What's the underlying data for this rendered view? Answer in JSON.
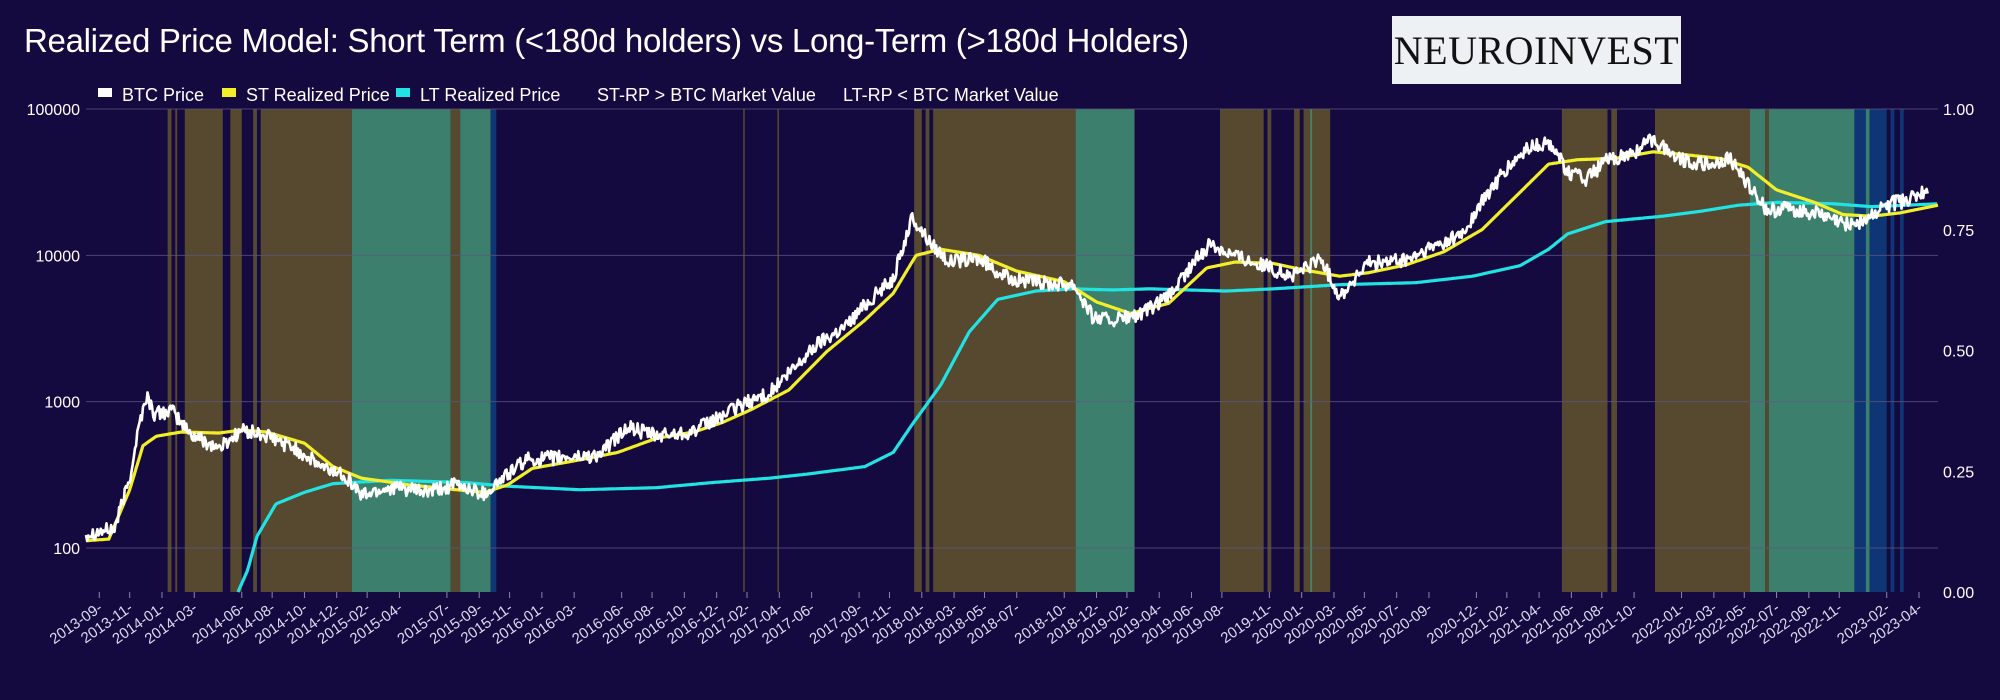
{
  "title": "Realized Price Model: Short Term (<180d holders) vs Long-Term (>180d Holders)",
  "brand": "NEUROINVEST",
  "legend": [
    {
      "label": "BTC Price",
      "color": "#ffffff",
      "marker": true
    },
    {
      "label": "ST Realized Price",
      "color": "#f2ee2a",
      "marker": true
    },
    {
      "label": "LT Realized Price",
      "color": "#22e3e3",
      "marker": true
    },
    {
      "label": "ST-RP > BTC Market Value",
      "color": "#f2ee2a",
      "marker": false
    },
    {
      "label": "LT-RP < BTC Market Value",
      "color": "#22e3e3",
      "marker": false
    }
  ],
  "colors": {
    "background": "#140a40",
    "btc": "#ffffff",
    "st": "#f2ee2a",
    "lt": "#22e3e3",
    "st_band": "#5c4f2f",
    "lt_band": "#3f8a70",
    "dark_band": "#0d3a7a",
    "grid": "#5e5880"
  },
  "chart_data": {
    "type": "line",
    "title": "Realized Price Model: Short Term (<180d holders) vs Long-Term (>180d Holders)",
    "y_scale": "log",
    "ylim": [
      50,
      100000
    ],
    "y_ticks": [
      "100",
      "1000",
      "10000",
      "100000"
    ],
    "y2lim": [
      0,
      1
    ],
    "y2_ticks": [
      "0.00",
      "0.25",
      "0.50",
      "0.75",
      "1.00"
    ],
    "xlim": [
      2013.6,
      2023.35
    ],
    "x_ticks": [
      {
        "label": "2013-09-",
        "t": 2013.67
      },
      {
        "label": "2013-11-",
        "t": 2013.83
      },
      {
        "label": "2014-01-",
        "t": 2014.0
      },
      {
        "label": "2014-03-",
        "t": 2014.17
      },
      {
        "label": "2014-06-",
        "t": 2014.42
      },
      {
        "label": "2014-08-",
        "t": 2014.58
      },
      {
        "label": "2014-10-",
        "t": 2014.75
      },
      {
        "label": "2014-12-",
        "t": 2014.92
      },
      {
        "label": "2015-02-",
        "t": 2015.08
      },
      {
        "label": "2015-04-",
        "t": 2015.25
      },
      {
        "label": "2015-07-",
        "t": 2015.5
      },
      {
        "label": "2015-09-",
        "t": 2015.67
      },
      {
        "label": "2015-11-",
        "t": 2015.83
      },
      {
        "label": "2016-01-",
        "t": 2016.0
      },
      {
        "label": "2016-03-",
        "t": 2016.17
      },
      {
        "label": "2016-06-",
        "t": 2016.42
      },
      {
        "label": "2016-08-",
        "t": 2016.58
      },
      {
        "label": "2016-10-",
        "t": 2016.75
      },
      {
        "label": "2016-12-",
        "t": 2016.92
      },
      {
        "label": "2017-02-",
        "t": 2017.08
      },
      {
        "label": "2017-04-",
        "t": 2017.25
      },
      {
        "label": "2017-06-",
        "t": 2017.42
      },
      {
        "label": "2017-09-",
        "t": 2017.67
      },
      {
        "label": "2017-11-",
        "t": 2017.83
      },
      {
        "label": "2018-01-",
        "t": 2018.0
      },
      {
        "label": "2018-03-",
        "t": 2018.17
      },
      {
        "label": "2018-05-",
        "t": 2018.33
      },
      {
        "label": "2018-07-",
        "t": 2018.5
      },
      {
        "label": "2018-10-",
        "t": 2018.75
      },
      {
        "label": "2018-12-",
        "t": 2018.92
      },
      {
        "label": "2019-02-",
        "t": 2019.08
      },
      {
        "label": "2019-04-",
        "t": 2019.25
      },
      {
        "label": "2019-06-",
        "t": 2019.42
      },
      {
        "label": "2019-08-",
        "t": 2019.58
      },
      {
        "label": "2019-11-",
        "t": 2019.83
      },
      {
        "label": "2020-01-",
        "t": 2020.0
      },
      {
        "label": "2020-03-",
        "t": 2020.17
      },
      {
        "label": "2020-05-",
        "t": 2020.33
      },
      {
        "label": "2020-07-",
        "t": 2020.5
      },
      {
        "label": "2020-09-",
        "t": 2020.67
      },
      {
        "label": "2020-12-",
        "t": 2020.92
      },
      {
        "label": "2021-02-",
        "t": 2021.08
      },
      {
        "label": "2021-04-",
        "t": 2021.25
      },
      {
        "label": "2021-06-",
        "t": 2021.42
      },
      {
        "label": "2021-08-",
        "t": 2021.58
      },
      {
        "label": "2021-10-",
        "t": 2021.75
      },
      {
        "label": "2022-01-",
        "t": 2022.0
      },
      {
        "label": "2022-03-",
        "t": 2022.17
      },
      {
        "label": "2022-05-",
        "t": 2022.33
      },
      {
        "label": "2022-07-",
        "t": 2022.5
      },
      {
        "label": "2022-09-",
        "t": 2022.67
      },
      {
        "label": "2022-11-",
        "t": 2022.83
      },
      {
        "label": "2023-02-",
        "t": 2023.08
      },
      {
        "label": "2023-04-",
        "t": 2023.25
      }
    ],
    "series": [
      {
        "name": "BTC Price",
        "key": "btc",
        "noise": 0.05,
        "points": [
          [
            2013.6,
            125
          ],
          [
            2013.75,
            135
          ],
          [
            2013.83,
            300
          ],
          [
            2013.88,
            700
          ],
          [
            2013.92,
            1100
          ],
          [
            2013.96,
            820
          ],
          [
            2014.05,
            870
          ],
          [
            2014.15,
            600
          ],
          [
            2014.3,
            480
          ],
          [
            2014.42,
            640
          ],
          [
            2014.55,
            580
          ],
          [
            2014.7,
            480
          ],
          [
            2014.85,
            350
          ],
          [
            2014.96,
            320
          ],
          [
            2015.05,
            230
          ],
          [
            2015.2,
            260
          ],
          [
            2015.4,
            240
          ],
          [
            2015.55,
            270
          ],
          [
            2015.7,
            235
          ],
          [
            2015.82,
            320
          ],
          [
            2015.92,
            400
          ],
          [
            2016.05,
            410
          ],
          [
            2016.3,
            430
          ],
          [
            2016.45,
            670
          ],
          [
            2016.6,
            580
          ],
          [
            2016.8,
            630
          ],
          [
            2016.95,
            800
          ],
          [
            2017.05,
            950
          ],
          [
            2017.2,
            1150
          ],
          [
            2017.35,
            1800
          ],
          [
            2017.45,
            2500
          ],
          [
            2017.6,
            3300
          ],
          [
            2017.7,
            4600
          ],
          [
            2017.85,
            7000
          ],
          [
            2017.95,
            18000
          ],
          [
            2018.05,
            12000
          ],
          [
            2018.15,
            9000
          ],
          [
            2018.3,
            9500
          ],
          [
            2018.45,
            7000
          ],
          [
            2018.6,
            6500
          ],
          [
            2018.8,
            6400
          ],
          [
            2018.9,
            3800
          ],
          [
            2019.0,
            3600
          ],
          [
            2019.15,
            3900
          ],
          [
            2019.3,
            5200
          ],
          [
            2019.45,
            9500
          ],
          [
            2019.52,
            12000
          ],
          [
            2019.65,
            10000
          ],
          [
            2019.8,
            8500
          ],
          [
            2019.95,
            7200
          ],
          [
            2020.1,
            9500
          ],
          [
            2020.2,
            5200
          ],
          [
            2020.35,
            8800
          ],
          [
            2020.55,
            9200
          ],
          [
            2020.7,
            11500
          ],
          [
            2020.85,
            14000
          ],
          [
            2020.95,
            23000
          ],
          [
            2021.05,
            35000
          ],
          [
            2021.2,
            55000
          ],
          [
            2021.32,
            58000
          ],
          [
            2021.4,
            37000
          ],
          [
            2021.5,
            33000
          ],
          [
            2021.6,
            44000
          ],
          [
            2021.72,
            48000
          ],
          [
            2021.85,
            62000
          ],
          [
            2022.0,
            45000
          ],
          [
            2022.15,
            41000
          ],
          [
            2022.25,
            46000
          ],
          [
            2022.35,
            31000
          ],
          [
            2022.45,
            20000
          ],
          [
            2022.55,
            21000
          ],
          [
            2022.7,
            19500
          ],
          [
            2022.85,
            16500
          ],
          [
            2022.95,
            17000
          ],
          [
            2023.1,
            22500
          ],
          [
            2023.2,
            24000
          ],
          [
            2023.3,
            28000
          ]
        ]
      },
      {
        "name": "ST Realized Price",
        "key": "st",
        "noise": 0,
        "points": [
          [
            2013.6,
            112
          ],
          [
            2013.72,
            115
          ],
          [
            2013.83,
            250
          ],
          [
            2013.9,
            500
          ],
          [
            2013.97,
            580
          ],
          [
            2014.1,
            620
          ],
          [
            2014.3,
            610
          ],
          [
            2014.42,
            640
          ],
          [
            2014.55,
            620
          ],
          [
            2014.75,
            520
          ],
          [
            2014.9,
            360
          ],
          [
            2015.05,
            300
          ],
          [
            2015.3,
            270
          ],
          [
            2015.55,
            250
          ],
          [
            2015.7,
            240
          ],
          [
            2015.82,
            270
          ],
          [
            2015.95,
            350
          ],
          [
            2016.2,
            400
          ],
          [
            2016.4,
            450
          ],
          [
            2016.6,
            560
          ],
          [
            2016.8,
            620
          ],
          [
            2016.95,
            720
          ],
          [
            2017.1,
            880
          ],
          [
            2017.3,
            1200
          ],
          [
            2017.5,
            2200
          ],
          [
            2017.7,
            3600
          ],
          [
            2017.85,
            5500
          ],
          [
            2017.97,
            10000
          ],
          [
            2018.1,
            11000
          ],
          [
            2018.3,
            10000
          ],
          [
            2018.5,
            7800
          ],
          [
            2018.75,
            6600
          ],
          [
            2018.92,
            4800
          ],
          [
            2019.1,
            4000
          ],
          [
            2019.3,
            4700
          ],
          [
            2019.5,
            8200
          ],
          [
            2019.65,
            9000
          ],
          [
            2019.85,
            8800
          ],
          [
            2020.0,
            8000
          ],
          [
            2020.2,
            7200
          ],
          [
            2020.35,
            7600
          ],
          [
            2020.55,
            8600
          ],
          [
            2020.75,
            10600
          ],
          [
            2020.95,
            15000
          ],
          [
            2021.15,
            27000
          ],
          [
            2021.3,
            42000
          ],
          [
            2021.45,
            45000
          ],
          [
            2021.65,
            46000
          ],
          [
            2021.85,
            51000
          ],
          [
            2022.0,
            49000
          ],
          [
            2022.2,
            46000
          ],
          [
            2022.35,
            40000
          ],
          [
            2022.5,
            28000
          ],
          [
            2022.7,
            23000
          ],
          [
            2022.85,
            19000
          ],
          [
            2023.0,
            18500
          ],
          [
            2023.15,
            19500
          ],
          [
            2023.35,
            22000
          ]
        ]
      },
      {
        "name": "LT Realized Price",
        "key": "lt",
        "noise": 0,
        "points": [
          [
            2014.4,
            50
          ],
          [
            2014.45,
            70
          ],
          [
            2014.5,
            120
          ],
          [
            2014.6,
            200
          ],
          [
            2014.75,
            240
          ],
          [
            2014.9,
            275
          ],
          [
            2015.2,
            290
          ],
          [
            2015.6,
            280
          ],
          [
            2015.8,
            265
          ],
          [
            2016.2,
            250
          ],
          [
            2016.6,
            258
          ],
          [
            2016.9,
            280
          ],
          [
            2017.2,
            300
          ],
          [
            2017.4,
            320
          ],
          [
            2017.7,
            360
          ],
          [
            2017.85,
            450
          ],
          [
            2017.95,
            700
          ],
          [
            2018.1,
            1300
          ],
          [
            2018.25,
            3000
          ],
          [
            2018.4,
            5000
          ],
          [
            2018.6,
            5700
          ],
          [
            2018.8,
            5900
          ],
          [
            2019.0,
            5800
          ],
          [
            2019.2,
            5900
          ],
          [
            2019.6,
            5700
          ],
          [
            2019.85,
            5900
          ],
          [
            2020.2,
            6300
          ],
          [
            2020.6,
            6500
          ],
          [
            2020.9,
            7200
          ],
          [
            2021.15,
            8500
          ],
          [
            2021.3,
            11000
          ],
          [
            2021.4,
            14000
          ],
          [
            2021.6,
            17000
          ],
          [
            2021.9,
            18500
          ],
          [
            2022.1,
            20000
          ],
          [
            2022.3,
            22000
          ],
          [
            2022.5,
            23000
          ],
          [
            2022.8,
            22500
          ],
          [
            2023.0,
            21500
          ],
          [
            2023.35,
            22500
          ]
        ]
      }
    ],
    "bands": [
      {
        "type": "st",
        "from": 2014.03,
        "to": 2014.05
      },
      {
        "type": "st",
        "from": 2014.07,
        "to": 2014.08
      },
      {
        "type": "st",
        "from": 2014.12,
        "to": 2014.32
      },
      {
        "type": "st",
        "from": 2014.36,
        "to": 2014.42
      },
      {
        "type": "st",
        "from": 2014.48,
        "to": 2014.5
      },
      {
        "type": "st",
        "from": 2014.52,
        "to": 2015.0
      },
      {
        "type": "lt",
        "from": 2015.0,
        "to": 2015.52
      },
      {
        "type": "st",
        "from": 2015.52,
        "to": 2015.57
      },
      {
        "type": "lt",
        "from": 2015.57,
        "to": 2015.73
      },
      {
        "type": "dark",
        "from": 2015.73,
        "to": 2015.76
      },
      {
        "type": "st",
        "from": 2017.06,
        "to": 2017.065
      },
      {
        "type": "st",
        "from": 2017.24,
        "to": 2017.245
      },
      {
        "type": "st",
        "from": 2017.96,
        "to": 2018.0
      },
      {
        "type": "st",
        "from": 2018.02,
        "to": 2018.04
      },
      {
        "type": "st",
        "from": 2018.06,
        "to": 2018.81
      },
      {
        "type": "lt",
        "from": 2018.81,
        "to": 2019.12
      },
      {
        "type": "st",
        "from": 2019.57,
        "to": 2019.8
      },
      {
        "type": "st",
        "from": 2019.82,
        "to": 2019.84
      },
      {
        "type": "st",
        "from": 2019.96,
        "to": 2019.99
      },
      {
        "type": "st",
        "from": 2020.01,
        "to": 2020.15
      },
      {
        "type": "lt",
        "from": 2020.045,
        "to": 2020.055
      },
      {
        "type": "st",
        "from": 2021.37,
        "to": 2021.61
      },
      {
        "type": "st",
        "from": 2021.63,
        "to": 2021.66
      },
      {
        "type": "st",
        "from": 2021.86,
        "to": 2022.36
      },
      {
        "type": "lt",
        "from": 2022.36,
        "to": 2022.44
      },
      {
        "type": "st",
        "from": 2022.44,
        "to": 2022.46
      },
      {
        "type": "lt",
        "from": 2022.46,
        "to": 2022.91
      },
      {
        "type": "dark",
        "from": 2022.91,
        "to": 2022.97
      },
      {
        "type": "lt",
        "from": 2022.97,
        "to": 2022.99
      },
      {
        "type": "dark",
        "from": 2022.99,
        "to": 2023.08
      },
      {
        "type": "dark",
        "from": 2023.1,
        "to": 2023.12
      },
      {
        "type": "dark",
        "from": 2023.15,
        "to": 2023.17
      }
    ]
  }
}
